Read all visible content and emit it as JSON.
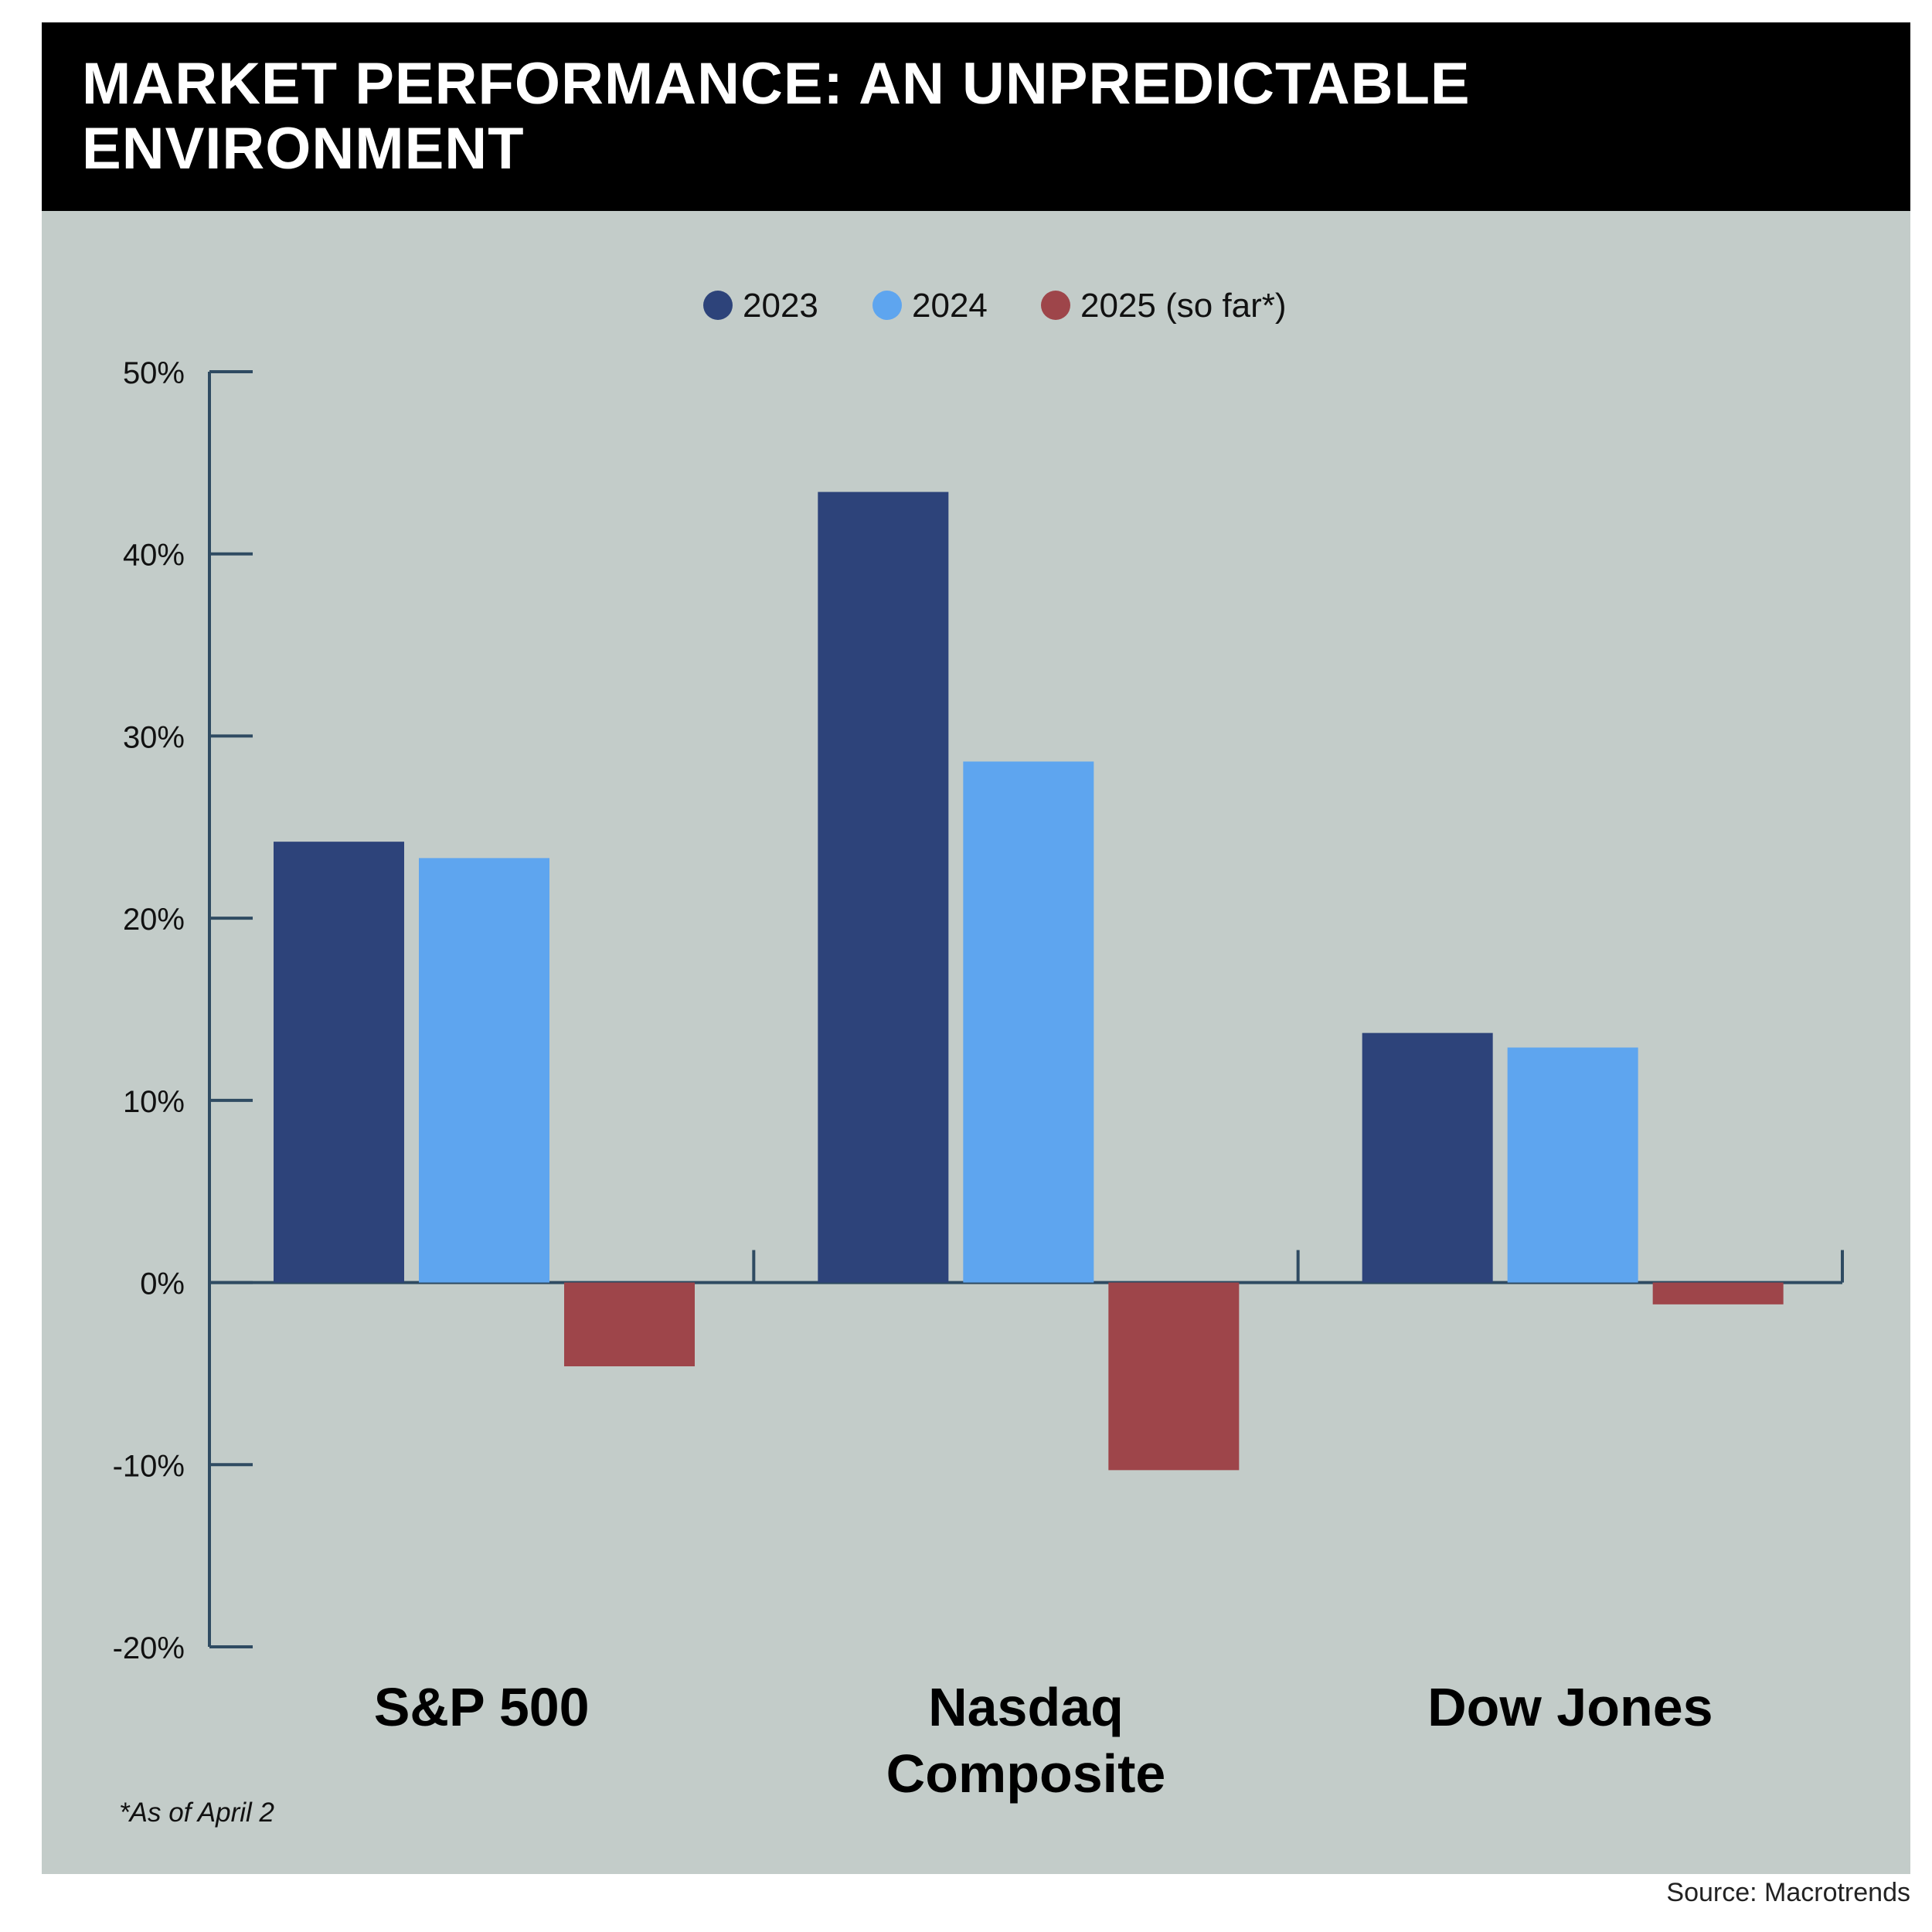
{
  "title_lines": [
    "MARKET PERFORMANCE: AN UNPREDICTABLE",
    "ENVIRONMENT"
  ],
  "footnote": "*As of April 2",
  "source": "Source: Macrotrends",
  "colors": {
    "title_bg": "#000000",
    "panel_bg": "#c3ccc9",
    "axis": "#2f4b62",
    "s2023": "#2d437a",
    "s2024": "#5ea5ef",
    "s2025": "#9e454a"
  },
  "chart_data": {
    "type": "bar",
    "title": "MARKET PERFORMANCE: AN UNPREDICTABLE ENVIRONMENT",
    "categories": [
      [
        "S&P 500"
      ],
      [
        "Nasdaq",
        "Composite"
      ],
      [
        "Dow Jones"
      ]
    ],
    "series": [
      {
        "name": "2023",
        "color": "#2d437a",
        "values": [
          24.2,
          43.4,
          13.7
        ]
      },
      {
        "name": "2024",
        "color": "#5ea5ef",
        "values": [
          23.3,
          28.6,
          12.9
        ]
      },
      {
        "name": "2025 (so far*)",
        "color": "#9e454a",
        "values": [
          -4.6,
          -10.3,
          -1.2
        ]
      }
    ],
    "ylim": [
      -20,
      50
    ],
    "yticks": [
      -20,
      -10,
      0,
      10,
      20,
      30,
      40,
      50
    ],
    "ytick_labels": [
      "-20%",
      "-10%",
      "0%",
      "10%",
      "20%",
      "30%",
      "40%",
      "50%"
    ],
    "xlabel": "",
    "ylabel": "",
    "grid": false,
    "legend_position": "top-center"
  }
}
